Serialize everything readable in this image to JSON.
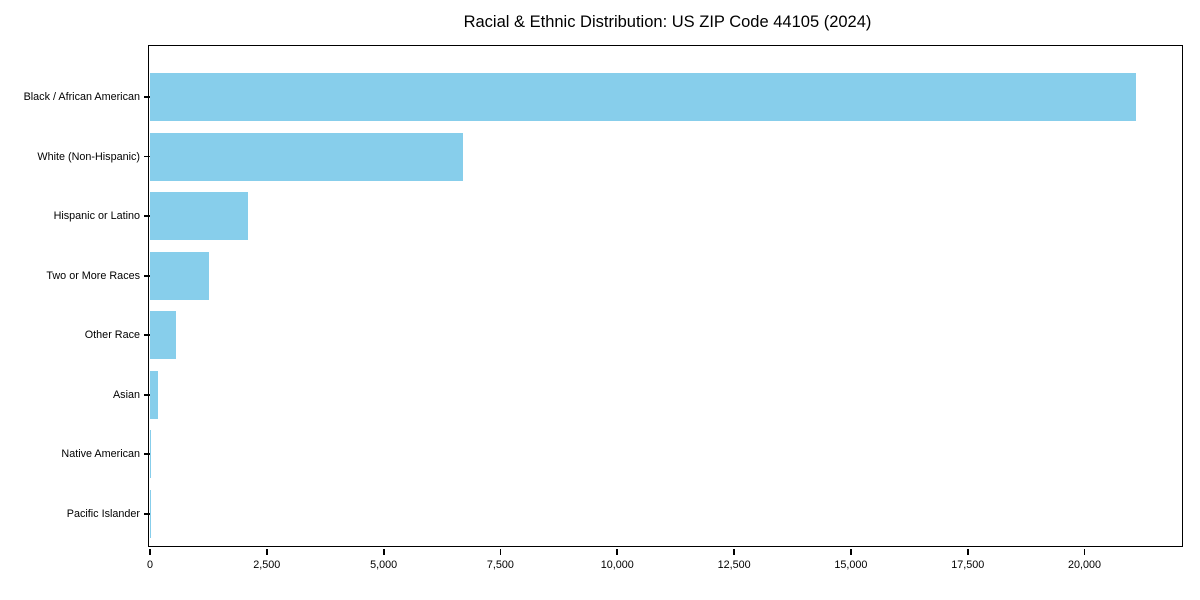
{
  "page": {
    "background_color": "#ffffff",
    "text_color": "#000000"
  },
  "chart_data": {
    "type": "bar",
    "orientation": "horizontal",
    "title": "Racial & Ethnic Distribution: US ZIP Code 44105 (2024)",
    "categories": [
      "Black / African American",
      "White (Non-Hispanic)",
      "Hispanic or Latino",
      "Two or More Races",
      "Other Race",
      "Asian",
      "Native American",
      "Pacific Islander"
    ],
    "values": [
      21100,
      6700,
      2100,
      1260,
      560,
      170,
      30,
      10
    ],
    "xlabel": "",
    "ylabel": "",
    "xlim": [
      0,
      22150
    ],
    "x_ticks": [
      0,
      2500,
      5000,
      7500,
      10000,
      12500,
      15000,
      17500,
      20000
    ],
    "x_tick_labels": [
      "0",
      "2,500",
      "5,000",
      "7,500",
      "10,000",
      "12,500",
      "15,000",
      "17,500",
      "20,000"
    ],
    "bar_color": "#87CEEB",
    "axis_color": "#000000",
    "grid": false,
    "legend": false
  }
}
